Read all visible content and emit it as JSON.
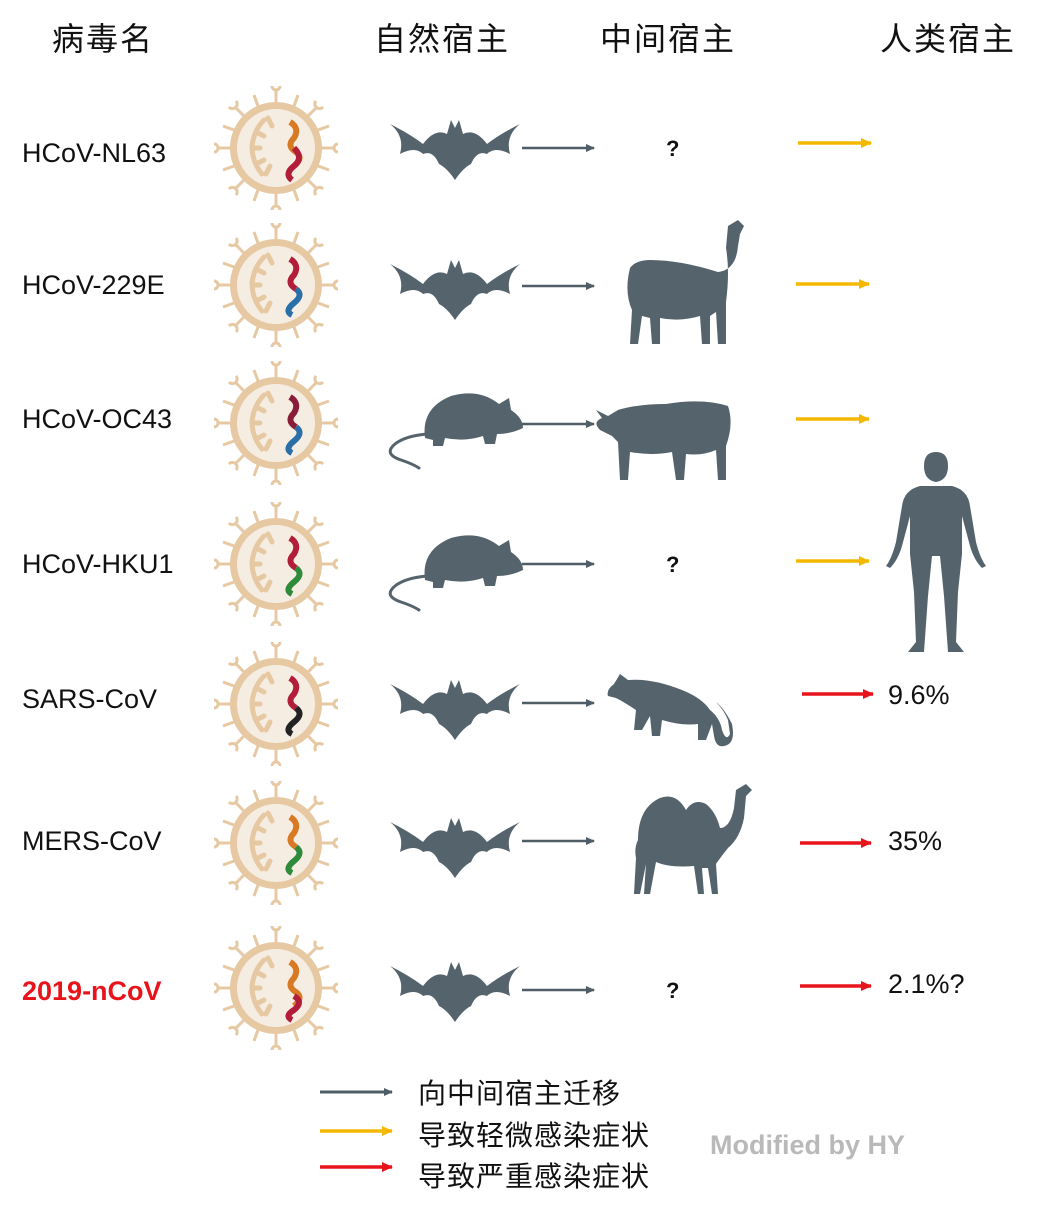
{
  "headers": {
    "virus": "病毒名",
    "natural": "自然宿主",
    "intermediate": "中间宿主",
    "human": "人类宿主"
  },
  "rows": [
    {
      "virus": "HCoV-NL63",
      "natural_host": "bat-icon",
      "intermediate_host": "?",
      "intermediate_icon": "",
      "arrow_color": "#f5b800",
      "fatality": ""
    },
    {
      "virus": "HCoV-229E",
      "natural_host": "bat-icon",
      "intermediate_host": "",
      "intermediate_icon": "alpaca-icon",
      "arrow_color": "#f5b800",
      "fatality": ""
    },
    {
      "virus": "HCoV-OC43",
      "natural_host": "rodent-icon",
      "intermediate_host": "",
      "intermediate_icon": "cow-icon",
      "arrow_color": "#f5b800",
      "fatality": ""
    },
    {
      "virus": "HCoV-HKU1",
      "natural_host": "rodent-icon",
      "intermediate_host": "?",
      "intermediate_icon": "",
      "arrow_color": "#f5b800",
      "fatality": ""
    },
    {
      "virus": "SARS-CoV",
      "natural_host": "bat-icon",
      "intermediate_host": "",
      "intermediate_icon": "civet-icon",
      "arrow_color": "#e8141b",
      "fatality": "9.6%"
    },
    {
      "virus": "MERS-CoV",
      "natural_host": "bat-icon",
      "intermediate_host": "",
      "intermediate_icon": "camel-icon",
      "arrow_color": "#e8141b",
      "fatality": "35%"
    },
    {
      "virus": "2019-nCoV",
      "natural_host": "bat-icon",
      "intermediate_host": "?",
      "intermediate_icon": "",
      "arrow_color": "#e8141b",
      "fatality": "2.1%?"
    }
  ],
  "legend": [
    {
      "label": "向中间宿主迁移",
      "color": "#4f5d66"
    },
    {
      "label": "导致轻微感染症状",
      "color": "#f5b800"
    },
    {
      "label": "导致严重感染症状",
      "color": "#e8141b"
    }
  ],
  "credit": "Modified by HY",
  "colors": {
    "silhouette": "#55636c",
    "virus_shell": "#e6c9a2",
    "virus_core": "#f6ede2",
    "highlight_virus": "#e8141b"
  }
}
